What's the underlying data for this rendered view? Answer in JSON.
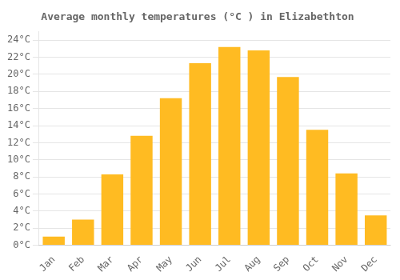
{
  "chart_data": {
    "type": "bar",
    "title": "Average monthly temperatures (°C ) in Elizabethton",
    "categories": [
      "Jan",
      "Feb",
      "Mar",
      "Apr",
      "May",
      "Jun",
      "Jul",
      "Aug",
      "Sep",
      "Oct",
      "Nov",
      "Dec"
    ],
    "values": [
      1.0,
      3.0,
      8.3,
      12.8,
      17.2,
      21.3,
      23.2,
      22.8,
      19.7,
      13.5,
      8.4,
      3.5
    ],
    "color": "#FFBB22",
    "ylim": [
      0,
      25
    ],
    "yticks": [
      {
        "value": 0,
        "label": "0°C"
      },
      {
        "value": 2,
        "label": "2°C"
      },
      {
        "value": 4,
        "label": "4°C"
      },
      {
        "value": 6,
        "label": "6°C"
      },
      {
        "value": 8,
        "label": "8°C"
      },
      {
        "value": 10,
        "label": "10°C"
      },
      {
        "value": 12,
        "label": "12°C"
      },
      {
        "value": 14,
        "label": "14°C"
      },
      {
        "value": 16,
        "label": "16°C"
      },
      {
        "value": 18,
        "label": "18°C"
      },
      {
        "value": 20,
        "label": "20°C"
      },
      {
        "value": 22,
        "label": "22°C"
      },
      {
        "value": 24,
        "label": "24°C"
      }
    ],
    "grid": true
  }
}
